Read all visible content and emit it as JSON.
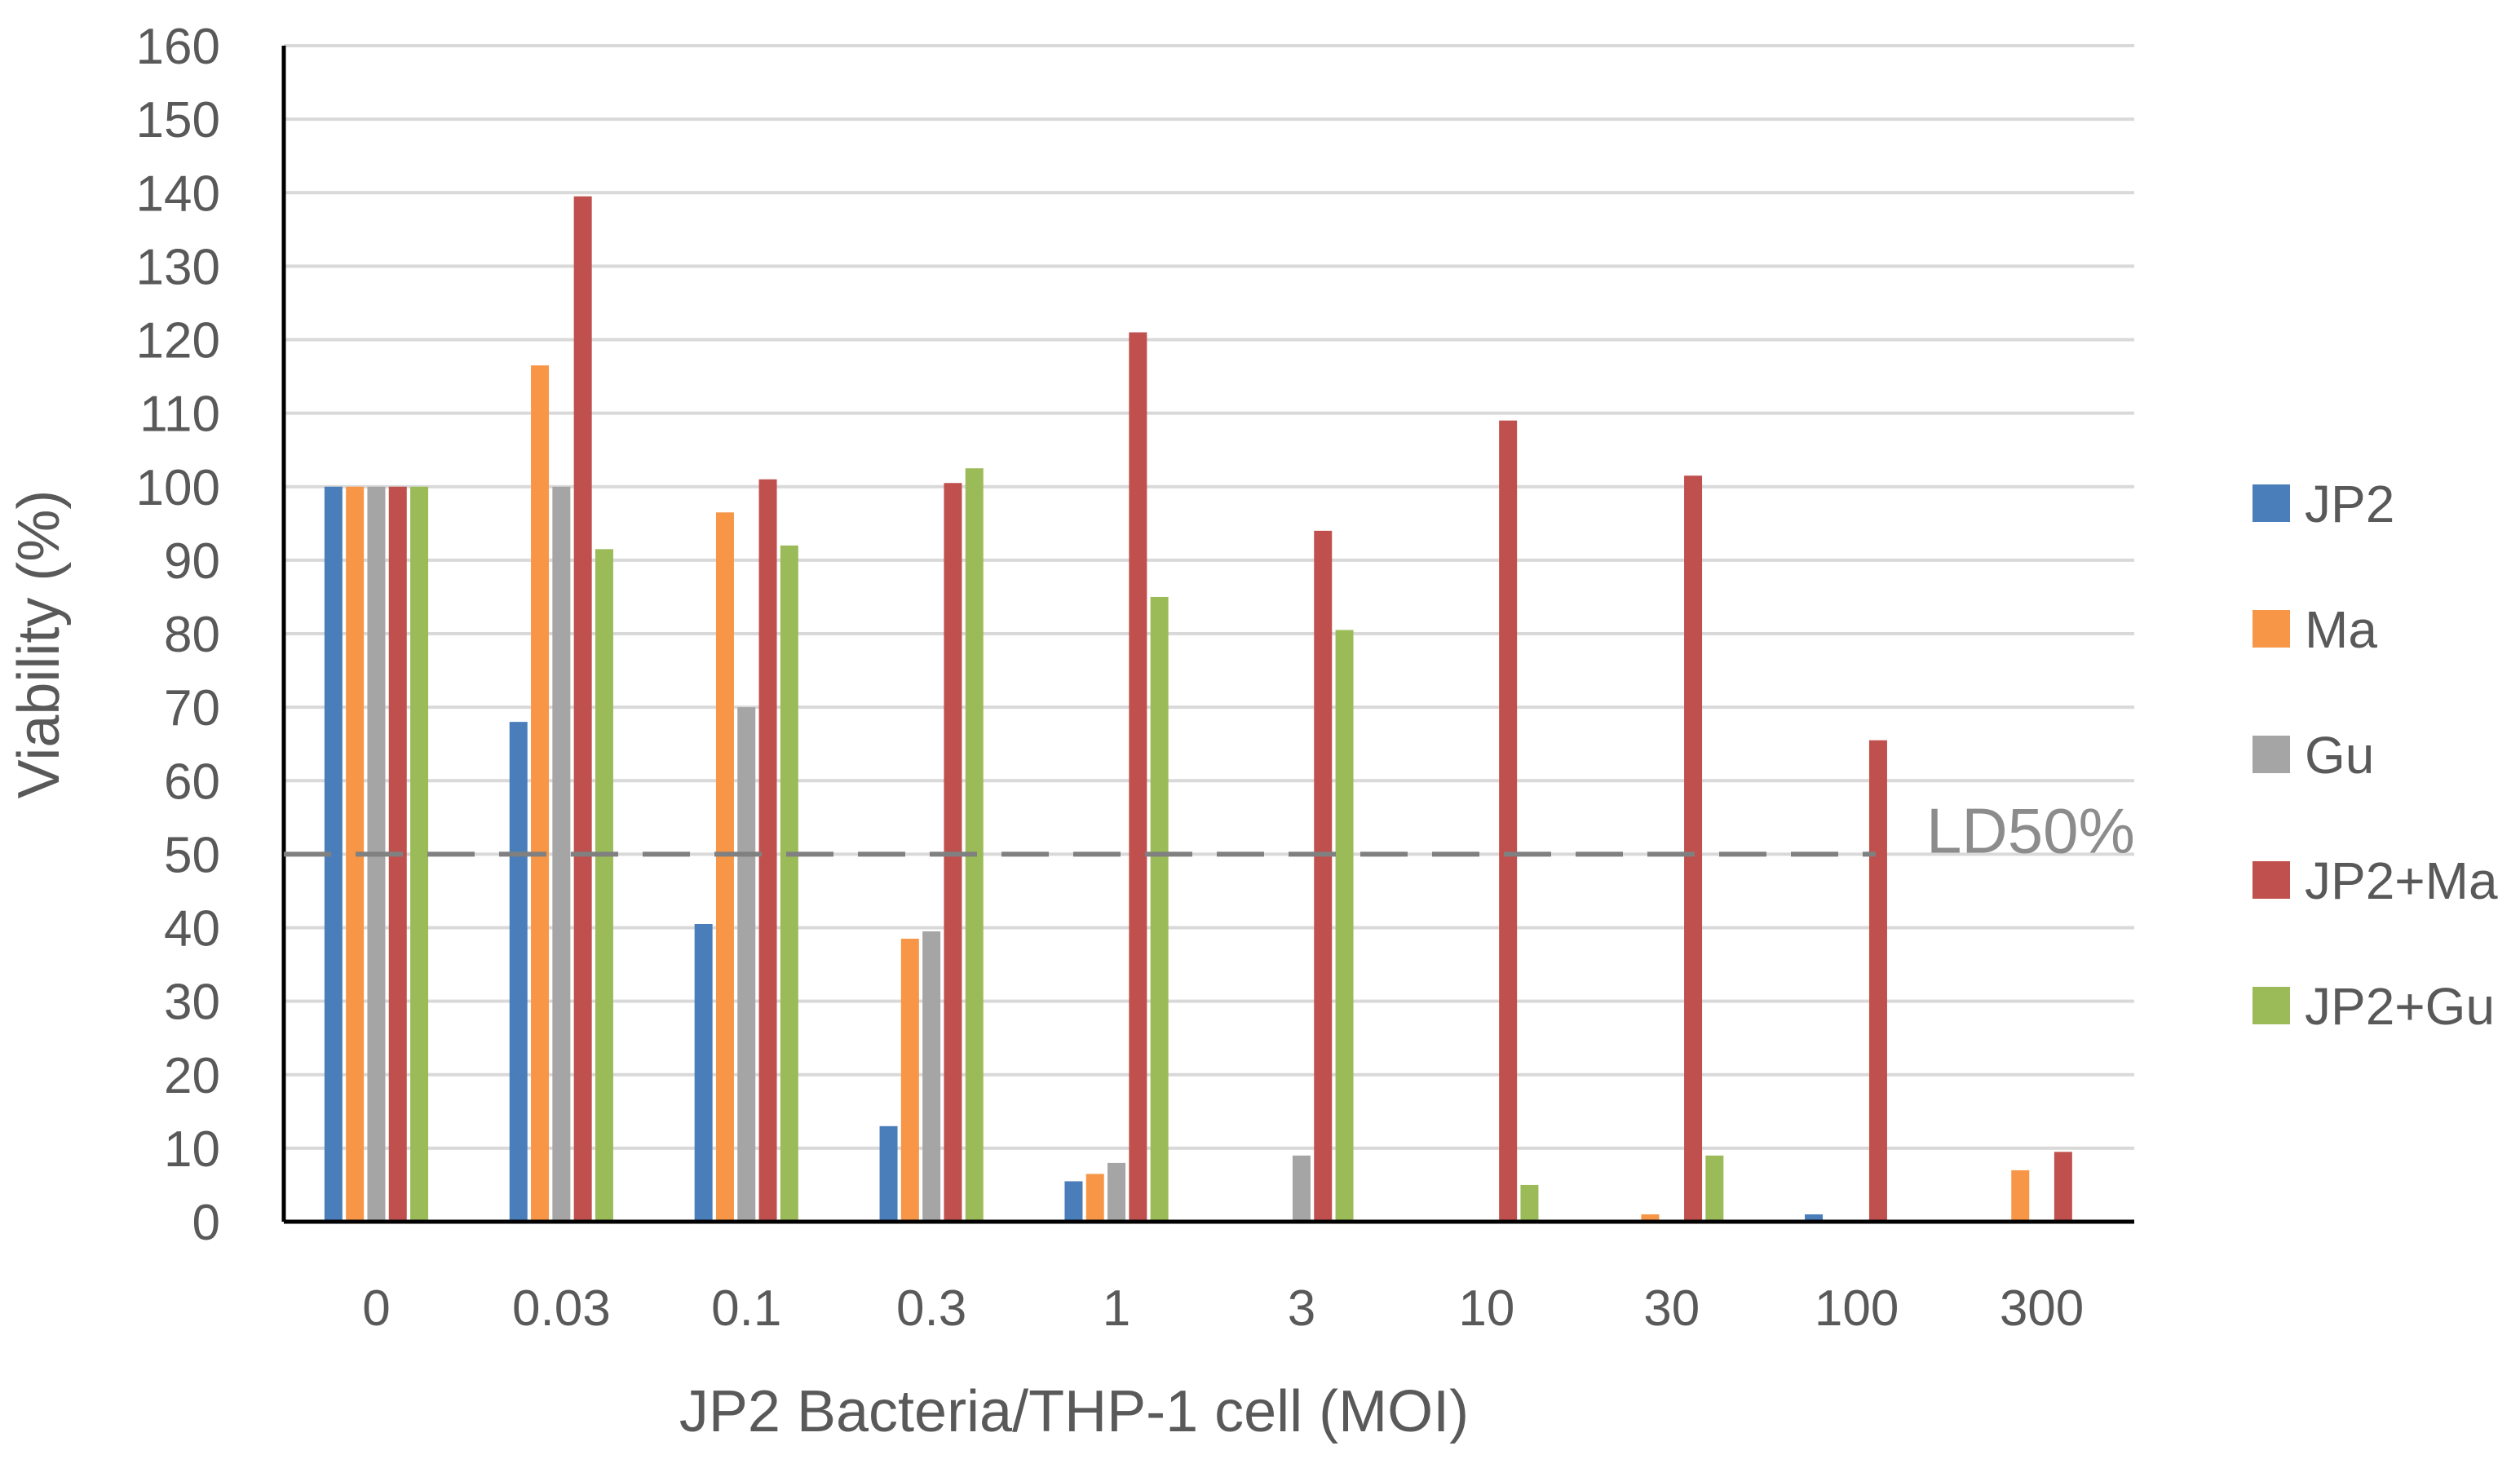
{
  "chart_data": {
    "type": "bar",
    "title": "",
    "xlabel": "JP2 Bacteria/THP-1 cell (MOI)",
    "ylabel": "Viability (%)",
    "ylim": [
      0,
      160
    ],
    "yticks": [
      "0",
      "10",
      "20",
      "30",
      "40",
      "50",
      "60",
      "70",
      "80",
      "90",
      "100",
      "110",
      "120",
      "130",
      "140",
      "150",
      "160"
    ],
    "categories": [
      "0",
      "0.03",
      "0.1",
      "0.3",
      "1",
      "3",
      "10",
      "30",
      "100",
      "300"
    ],
    "grid": true,
    "legend_position": "right",
    "series": [
      {
        "name": "JP2",
        "color": "#4a7ebb",
        "values": [
          100,
          68,
          40.5,
          13,
          5.5,
          0,
          0,
          0,
          1,
          0
        ]
      },
      {
        "name": "Ma",
        "color": "#f79646",
        "values": [
          100,
          116.5,
          96.5,
          38.5,
          6.5,
          0,
          0,
          1,
          0,
          7
        ]
      },
      {
        "name": "Gu",
        "color": "#a5a5a5",
        "values": [
          100,
          100,
          70,
          39.5,
          8,
          9,
          0,
          0,
          0,
          0
        ]
      },
      {
        "name": "JP2+Ma",
        "color": "#c0504d",
        "values": [
          100,
          139.5,
          101,
          100.5,
          121,
          94,
          109,
          101.5,
          65.5,
          9.5
        ]
      },
      {
        "name": "JP2+Gu",
        "color": "#9bbb59",
        "values": [
          100,
          91.5,
          92,
          102.5,
          85,
          80.5,
          5,
          9,
          0,
          0
        ]
      }
    ],
    "reference_line": {
      "value": 50,
      "label": "LD50%",
      "style": "dashed",
      "color": "#808080"
    }
  }
}
